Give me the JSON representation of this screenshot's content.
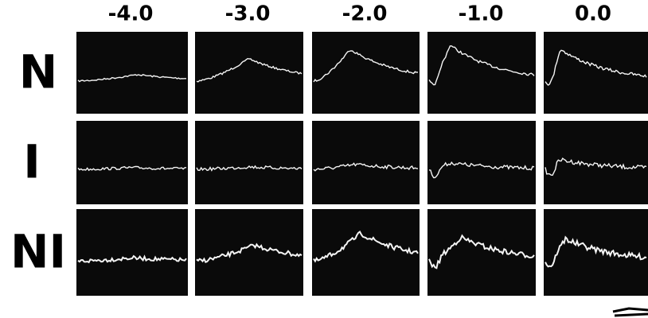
{
  "column_headers": [
    "-4.0",
    "-3.0",
    "-2.0",
    "-1.0",
    "0.0"
  ],
  "row_labels": [
    "N",
    "I",
    "NI"
  ]
}
